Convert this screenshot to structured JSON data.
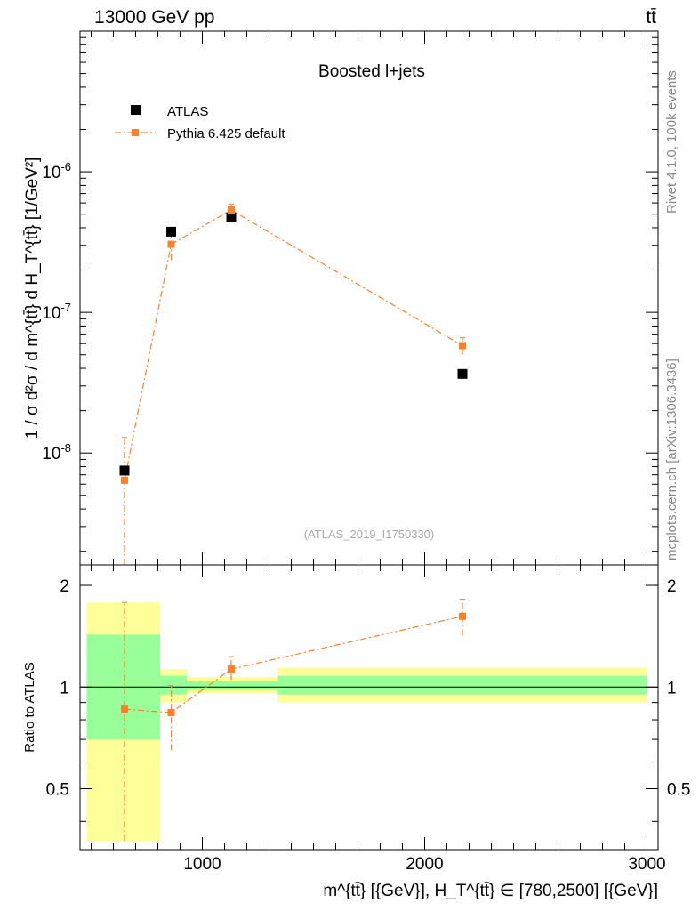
{
  "header": {
    "left": "13000 GeV pp",
    "right": "tt̄"
  },
  "side_labels": {
    "rivet": "Rivet 4.1.0,  100k events",
    "source": "mcplots.cern.ch [arXiv:1306.3436]"
  },
  "chart_data": [
    {
      "type": "scatter",
      "title": "Boosted l+jets",
      "analysis_tag": "(ATLAS_2019_I1750330)",
      "ylabel": "1 / σ d²σ / d m^{tt̄} d H_T^{tt̄} [1/GeV²]",
      "yscale": "log",
      "xlim": [
        450,
        3050
      ],
      "ylim": [
        1.6e-09,
        1e-05
      ],
      "ytick_labels": [
        "10^-8",
        "10^-7",
        "10^-6"
      ],
      "ytick_values": [
        1e-08,
        1e-07,
        1e-06
      ],
      "legend_position": "top-left",
      "series": [
        {
          "name": "ATLAS",
          "color": "#000000",
          "marker": "square",
          "x": [
            650,
            860,
            1130,
            2170
          ],
          "y": [
            7.5e-09,
            3.75e-07,
            4.75e-07,
            3.65e-08
          ]
        },
        {
          "name": "Pythia 6.425 default",
          "color": "#ff7f2a",
          "marker": "square",
          "line": "dash-dot",
          "x": [
            650,
            860,
            1130,
            2170
          ],
          "y": [
            6.4e-09,
            3.05e-07,
            5.35e-07,
            5.8e-08
          ],
          "err_low": [
            4.8e-09,
            7e-08,
            4.5e-08,
            8e-09
          ],
          "err_high": [
            6.5e-09,
            7e-08,
            5.5e-08,
            8e-09
          ]
        }
      ]
    },
    {
      "type": "scatter",
      "ylabel": "Ratio to ATLAS",
      "xlabel": "m^{tt̄} [{GeV}], H_T^{tt̄} ∈ [780,2500] [{GeV}]",
      "xlim": [
        450,
        3050
      ],
      "ylim": [
        0.33,
        2.3
      ],
      "xtick_labels": [
        "1000",
        "2000",
        "3000"
      ],
      "xtick_values": [
        1000,
        2000,
        3000
      ],
      "ytick_labels": [
        "0.5",
        "1",
        "2"
      ],
      "ytick_values": [
        0.5,
        1,
        2
      ],
      "reference_line": 1,
      "bands": [
        {
          "x0": 480,
          "x1": 810,
          "green": [
            0.7,
            1.43
          ],
          "yellow": [
            0.35,
            1.78
          ]
        },
        {
          "x0": 810,
          "x1": 930,
          "green": [
            0.95,
            1.08
          ],
          "yellow": [
            0.9,
            1.13
          ]
        },
        {
          "x0": 930,
          "x1": 1340,
          "green": [
            0.98,
            1.04
          ],
          "yellow": [
            0.96,
            1.07
          ]
        },
        {
          "x0": 1340,
          "x1": 3000,
          "green": [
            0.95,
            1.08
          ],
          "yellow": [
            0.9,
            1.14
          ]
        }
      ],
      "band_colors": {
        "green": "#99ff99",
        "yellow": "#ffff99"
      },
      "series": [
        {
          "name": "Pythia 6.425 default",
          "color": "#ff7f2a",
          "x": [
            650,
            860,
            1130,
            2170
          ],
          "y": [
            0.86,
            0.84,
            1.13,
            1.62
          ],
          "err_low": [
            0.51,
            0.19,
            0.08,
            0.2
          ],
          "err_high": [
            0.92,
            0.17,
            0.1,
            0.2
          ]
        }
      ]
    }
  ]
}
